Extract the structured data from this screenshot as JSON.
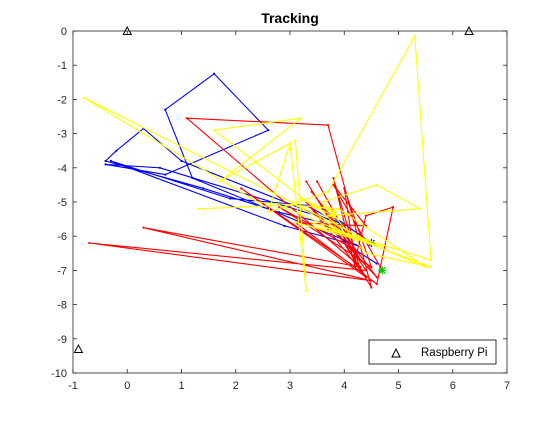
{
  "chart_data": {
    "type": "line",
    "title": "Tracking",
    "xlabel": "",
    "ylabel": "",
    "xlim": [
      -1,
      7
    ],
    "ylim": [
      -10,
      0
    ],
    "xticks": [
      -1,
      0,
      1,
      2,
      3,
      4,
      5,
      6,
      7
    ],
    "yticks": [
      -10,
      -9,
      -8,
      -7,
      -6,
      -5,
      -4,
      -3,
      -2,
      -1,
      0
    ],
    "grid": false,
    "legend": {
      "position": "bottom-right",
      "entries": [
        "Raspberry Pi"
      ]
    },
    "anchors": {
      "name": "Raspberry Pi",
      "marker": "triangle",
      "color": "#000000",
      "points": [
        [
          0,
          0
        ],
        [
          6.3,
          0
        ],
        [
          -0.9,
          -9.3
        ]
      ]
    },
    "series": [
      {
        "color": "#0000ff",
        "end_marker": "asterisk",
        "points": [
          [
            4.6,
            -6.8
          ],
          [
            4.2,
            -6.4
          ],
          [
            3.6,
            -5.6
          ],
          [
            2.8,
            -5.3
          ],
          [
            1.4,
            -4.6
          ],
          [
            -0.4,
            -3.8
          ],
          [
            -0.2,
            -3.5
          ],
          [
            0.3,
            -2.85
          ],
          [
            1.0,
            -3.8
          ],
          [
            3.7,
            -5.5
          ],
          [
            0.6,
            -4.0
          ],
          [
            -0.4,
            -3.9
          ],
          [
            0.7,
            -4.2
          ],
          [
            2.6,
            -2.9
          ],
          [
            1.6,
            -1.25
          ],
          [
            0.7,
            -2.3
          ],
          [
            1.2,
            -4.3
          ],
          [
            4.3,
            -6.3
          ],
          [
            2.9,
            -5.7
          ],
          [
            -0.3,
            -3.8
          ],
          [
            1.9,
            -4.9
          ],
          [
            3.3,
            -5.1
          ],
          [
            4.0,
            -5.7
          ],
          [
            3.6,
            -5.2
          ],
          [
            4.5,
            -6.2
          ]
        ]
      },
      {
        "color": "#ff0000",
        "end_marker": "asterisk",
        "end_marker_color": "#00cc00",
        "points": [
          [
            3.7,
            -5.35
          ],
          [
            4.4,
            -7.0
          ],
          [
            -0.7,
            -6.2
          ],
          [
            4.5,
            -7.3
          ],
          [
            0.3,
            -5.75
          ],
          [
            4.3,
            -6.9
          ],
          [
            1.1,
            -2.55
          ],
          [
            3.7,
            -2.75
          ],
          [
            4.5,
            -7.5
          ],
          [
            3.3,
            -4.4
          ],
          [
            4.4,
            -7.2
          ],
          [
            2.1,
            -4.6
          ],
          [
            4.2,
            -6.9
          ],
          [
            3.8,
            -4.3
          ],
          [
            4.3,
            -7.0
          ],
          [
            3.3,
            -5.0
          ],
          [
            4.6,
            -7.2
          ],
          [
            3.4,
            -4.7
          ],
          [
            4.3,
            -6.7
          ],
          [
            3.5,
            -4.4
          ],
          [
            4.2,
            -6.4
          ],
          [
            2.8,
            -5.15
          ],
          [
            4.5,
            -6.9
          ],
          [
            4.0,
            -4.6
          ],
          [
            4.2,
            -6.7
          ],
          [
            4.4,
            -5.4
          ],
          [
            4.9,
            -5.15
          ],
          [
            4.6,
            -7.4
          ],
          [
            3.1,
            -5.6
          ],
          [
            4.4,
            -5.7
          ],
          [
            3.8,
            -4.5
          ],
          [
            4.7,
            -7.0
          ]
        ]
      },
      {
        "color": "#ffff00",
        "end_marker": "asterisk",
        "points": [
          [
            1.3,
            -5.2
          ],
          [
            2.8,
            -5.1
          ],
          [
            5.5,
            -6.9
          ],
          [
            3.9,
            -5.2
          ],
          [
            2.4,
            -5.0
          ],
          [
            -0.8,
            -1.95
          ],
          [
            3.9,
            -5.7
          ],
          [
            1.6,
            -2.9
          ],
          [
            3.2,
            -2.55
          ],
          [
            1.7,
            -4.4
          ],
          [
            3.1,
            -3.2
          ],
          [
            3.3,
            -7.6
          ],
          [
            3.0,
            -3.3
          ],
          [
            2.6,
            -5.3
          ],
          [
            3.7,
            -4.7
          ],
          [
            5.3,
            -0.15
          ],
          [
            5.6,
            -6.7
          ],
          [
            4.0,
            -5.9
          ],
          [
            2.9,
            -4.9
          ],
          [
            4.4,
            -6.1
          ],
          [
            3.1,
            -5.6
          ],
          [
            4.7,
            -6.3
          ],
          [
            3.4,
            -5.6
          ],
          [
            5.6,
            -6.9
          ],
          [
            4.4,
            -6.5
          ],
          [
            3.6,
            -5.0
          ],
          [
            4.6,
            -4.5
          ],
          [
            5.4,
            -5.2
          ],
          [
            3.7,
            -5.4
          ],
          [
            3.9,
            -5.5
          ],
          [
            3.2,
            -4.9
          ],
          [
            3.8,
            -5.3
          ]
        ]
      }
    ]
  }
}
